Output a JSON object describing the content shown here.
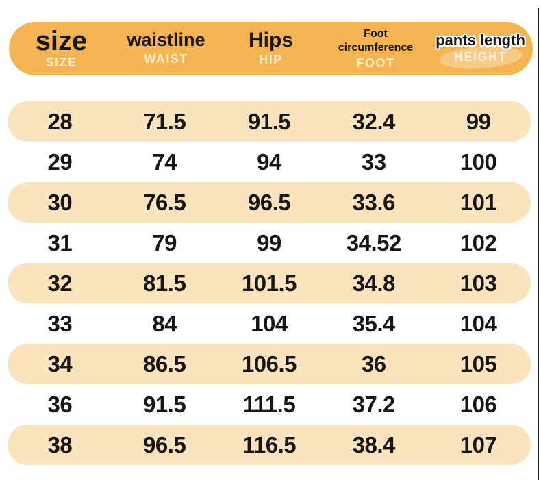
{
  "colors": {
    "header_bg": "#F3B451",
    "row_alt_bg": "#FBE3BD",
    "text_dark": "#161616",
    "sublabel_light": "#FFF5DF",
    "edge_line": "#1C1C1C"
  },
  "chart_data": {
    "type": "table",
    "title": "Pants size chart",
    "columns": [
      {
        "label": "size",
        "sublabel": "SIZE"
      },
      {
        "label": "waistline",
        "sublabel": "WAIST"
      },
      {
        "label": "Hips",
        "sublabel": "HIP"
      },
      {
        "label": "Foot circumference",
        "sublabel": "FOOT"
      },
      {
        "label": "pants length",
        "sublabel": "HEIGHT"
      }
    ],
    "rows": [
      [
        "28",
        "71.5",
        "91.5",
        "32.4",
        "99"
      ],
      [
        "29",
        "74",
        "94",
        "33",
        "100"
      ],
      [
        "30",
        "76.5",
        "96.5",
        "33.6",
        "101"
      ],
      [
        "31",
        "79",
        "99",
        "34.52",
        "102"
      ],
      [
        "32",
        "81.5",
        "101.5",
        "34.8",
        "103"
      ],
      [
        "33",
        "84",
        "104",
        "35.4",
        "104"
      ],
      [
        "34",
        "86.5",
        "106.5",
        "36",
        "105"
      ],
      [
        "36",
        "91.5",
        "111.5",
        "37.2",
        "106"
      ],
      [
        "38",
        "96.5",
        "116.5",
        "38.4",
        "107"
      ]
    ],
    "layout": {
      "alternating_row_highlight": "rows 1,3,5,7,9 have peach pill background",
      "grid": false
    }
  }
}
